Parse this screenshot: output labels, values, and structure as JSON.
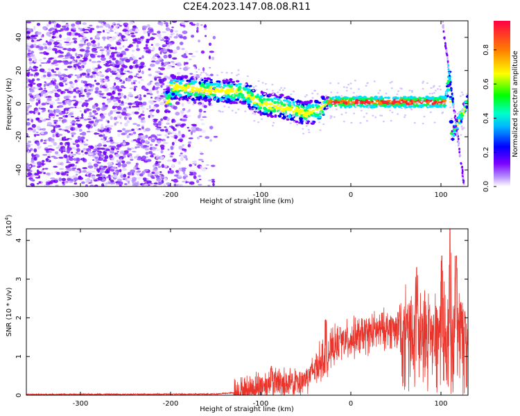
{
  "title": "C2E4.2023.147.08.08.R11",
  "chart_data": [
    {
      "type": "heatmap",
      "xlabel": "Height of straight line (km)",
      "ylabel": "Frequency (Hz)",
      "xlim": [
        -360,
        130
      ],
      "ylim": [
        -50,
        50
      ],
      "x_ticks": [
        -300,
        -200,
        -100,
        0,
        100
      ],
      "y_ticks": [
        -40,
        -20,
        0,
        20,
        40
      ],
      "colorbar": {
        "label": "Normalized spectral amplitude",
        "range": [
          0,
          0.97
        ],
        "ticks": [
          0.0,
          0.2,
          0.4,
          0.6,
          0.8
        ],
        "colormap": [
          "#ffffff",
          "#7a00ff",
          "#0000ff",
          "#00e5ff",
          "#00ff00",
          "#ffff00",
          "#ff8000",
          "#ff0033"
        ]
      },
      "features": {
        "broadband_noise_x_range": [
          -360,
          -170
        ],
        "signal_track": [
          {
            "x": -200,
            "y": 10
          },
          {
            "x": -150,
            "y": 8
          },
          {
            "x": -120,
            "y": 7
          },
          {
            "x": -100,
            "y": 0
          },
          {
            "x": -75,
            "y": -2
          },
          {
            "x": -50,
            "y": -6
          },
          {
            "x": -35,
            "y": -4
          },
          {
            "x": -25,
            "y": 1
          },
          {
            "x": 0,
            "y": 1
          },
          {
            "x": 50,
            "y": 1
          },
          {
            "x": 105,
            "y": 1
          },
          {
            "x": 110,
            "y": 18
          },
          {
            "x": 112,
            "y": -20
          },
          {
            "x": 130,
            "y": 2
          }
        ]
      }
    },
    {
      "type": "line",
      "xlabel": "Height of straight line (km)",
      "ylabel": "SNR (10 * v/v)",
      "y_multiplier": "(x10⁴)",
      "xlim": [
        -360,
        130
      ],
      "ylim": [
        0,
        4.3
      ],
      "x_ticks": [
        -300,
        -200,
        -100,
        0,
        100
      ],
      "y_ticks": [
        0,
        1,
        2,
        3,
        4
      ],
      "color": "#e8342b",
      "envelope": [
        {
          "x": -360,
          "y": 0.02
        },
        {
          "x": -150,
          "y": 0.03
        },
        {
          "x": -120,
          "y": 0.08
        },
        {
          "x": -100,
          "y": 0.25
        },
        {
          "x": -80,
          "y": 0.35
        },
        {
          "x": -60,
          "y": 0.25
        },
        {
          "x": -45,
          "y": 0.55
        },
        {
          "x": -30,
          "y": 1.0
        },
        {
          "x": -15,
          "y": 1.3
        },
        {
          "x": 0,
          "y": 1.45
        },
        {
          "x": 20,
          "y": 1.6
        },
        {
          "x": 40,
          "y": 1.72
        },
        {
          "x": 60,
          "y": 1.78
        },
        {
          "x": 80,
          "y": 1.8
        },
        {
          "x": 100,
          "y": 1.75
        },
        {
          "x": 115,
          "y": 1.7
        },
        {
          "x": 130,
          "y": 1.65
        }
      ],
      "peaks": [
        {
          "x": -88,
          "y": 0.75
        },
        {
          "x": -60,
          "y": 0.5
        },
        {
          "x": -28,
          "y": 1.95
        },
        {
          "x": -12,
          "y": 1.75
        },
        {
          "x": 62,
          "y": 2.1
        },
        {
          "x": 73,
          "y": 3.3
        },
        {
          "x": 87,
          "y": 2.2
        },
        {
          "x": 101,
          "y": 3.6
        },
        {
          "x": 110,
          "y": 4.3
        },
        {
          "x": 117,
          "y": 3.6
        },
        {
          "x": 122,
          "y": 2.4
        }
      ]
    }
  ]
}
